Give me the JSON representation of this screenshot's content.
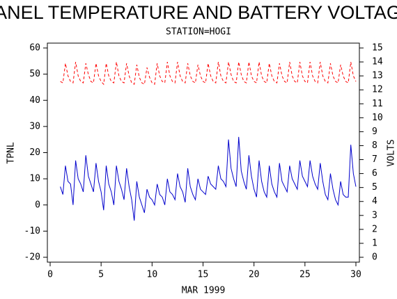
{
  "chart_data": {
    "type": "line",
    "title": "PANEL TEMPERATURE AND BATTERY VOLTAGE",
    "subtitle": "STATION=HOGI",
    "x_label": "MAR 1999",
    "y_label": "TPNL",
    "y2_label": "VOLTS",
    "xlim": [
      0,
      30
    ],
    "xticks": [
      0,
      5,
      10,
      15,
      20,
      25,
      30
    ],
    "ylim": [
      -20,
      60
    ],
    "yticks": [
      -20,
      -10,
      0,
      10,
      20,
      30,
      40,
      50,
      60
    ],
    "y2lim": [
      0,
      15
    ],
    "y2ticks": [
      0,
      1,
      2,
      3,
      4,
      5,
      6,
      7,
      8,
      9,
      10,
      11,
      12,
      13,
      14,
      15
    ],
    "x": [
      1,
      1.25,
      1.5,
      1.75,
      2,
      2.25,
      2.5,
      2.75,
      3,
      3.25,
      3.5,
      3.75,
      4,
      4.25,
      4.5,
      4.75,
      5,
      5.25,
      5.5,
      5.75,
      6,
      6.25,
      6.5,
      6.75,
      7,
      7.25,
      7.5,
      7.75,
      8,
      8.25,
      8.5,
      8.75,
      9,
      9.25,
      9.5,
      9.75,
      10,
      10.25,
      10.5,
      10.75,
      11,
      11.25,
      11.5,
      11.75,
      12,
      12.25,
      12.5,
      12.75,
      13,
      13.25,
      13.5,
      13.75,
      14,
      14.25,
      14.5,
      14.75,
      15,
      15.25,
      15.5,
      15.75,
      16,
      16.25,
      16.5,
      16.75,
      17,
      17.25,
      17.5,
      17.75,
      18,
      18.25,
      18.5,
      18.75,
      19,
      19.25,
      19.5,
      19.75,
      20,
      20.25,
      20.5,
      20.75,
      21,
      21.25,
      21.5,
      21.75,
      22,
      22.25,
      22.5,
      22.75,
      23,
      23.25,
      23.5,
      23.75,
      24,
      24.25,
      24.5,
      24.75,
      25,
      25.25,
      25.5,
      25.75,
      26,
      26.25,
      26.5,
      26.75,
      27,
      27.25,
      27.5,
      27.75,
      28,
      28.25,
      28.5,
      28.75,
      29,
      29.25,
      29.5,
      29.75,
      30
    ],
    "series": [
      {
        "name": "TPNL",
        "color": "#0000cc",
        "axis": "y",
        "dashed": false,
        "values": [
          7,
          4,
          15,
          9,
          8,
          0,
          17,
          10,
          8,
          5,
          19,
          11,
          8,
          5,
          16,
          9,
          5,
          -2,
          15,
          8,
          5,
          0,
          15,
          9,
          6,
          2,
          14,
          7,
          2,
          -6,
          9,
          3,
          0,
          -3,
          6,
          3,
          2,
          0,
          8,
          4,
          3,
          0,
          10,
          5,
          4,
          2,
          12,
          7,
          5,
          1,
          14,
          7,
          4,
          2,
          10,
          6,
          5,
          4,
          11,
          8,
          7,
          6,
          15,
          10,
          9,
          7,
          25,
          14,
          10,
          7,
          26,
          13,
          9,
          6,
          19,
          11,
          6,
          3,
          17,
          9,
          5,
          3,
          15,
          8,
          5,
          3,
          16,
          9,
          7,
          5,
          15,
          10,
          8,
          6,
          17,
          11,
          9,
          7,
          17,
          11,
          8,
          6,
          16,
          9,
          4,
          2,
          12,
          6,
          2,
          0,
          9,
          4,
          3,
          3,
          23,
          12,
          7
        ]
      },
      {
        "name": "VOLTS",
        "color": "#ff0000",
        "axis": "y2",
        "dashed": true,
        "values": [
          12.6,
          12.5,
          13.9,
          13.0,
          12.6,
          12.5,
          14.0,
          13.0,
          12.6,
          12.5,
          13.9,
          13.1,
          12.6,
          12.5,
          13.9,
          13.0,
          12.6,
          12.4,
          13.9,
          13.0,
          12.6,
          12.5,
          14.0,
          13.0,
          12.6,
          12.5,
          13.9,
          13.0,
          12.5,
          12.4,
          13.8,
          12.9,
          12.5,
          12.4,
          13.6,
          12.9,
          12.5,
          12.4,
          13.9,
          13.0,
          12.6,
          12.5,
          14.0,
          13.0,
          12.6,
          12.5,
          14.0,
          13.0,
          12.6,
          12.5,
          13.9,
          13.0,
          12.6,
          12.5,
          13.8,
          13.0,
          12.6,
          12.5,
          13.9,
          13.0,
          12.6,
          12.5,
          14.0,
          13.0,
          12.6,
          12.5,
          14.0,
          13.1,
          12.6,
          12.5,
          14.0,
          13.1,
          12.6,
          12.5,
          14.0,
          13.0,
          12.6,
          12.5,
          14.0,
          13.0,
          12.6,
          12.5,
          13.9,
          13.0,
          12.6,
          12.5,
          13.9,
          13.0,
          12.6,
          12.5,
          14.0,
          13.0,
          12.6,
          12.5,
          14.0,
          13.0,
          12.6,
          12.5,
          14.0,
          13.0,
          12.6,
          12.5,
          14.0,
          13.0,
          12.6,
          12.5,
          13.9,
          13.0,
          12.6,
          12.5,
          13.8,
          13.0,
          12.6,
          12.5,
          14.0,
          13.0,
          12.6
        ]
      }
    ]
  }
}
